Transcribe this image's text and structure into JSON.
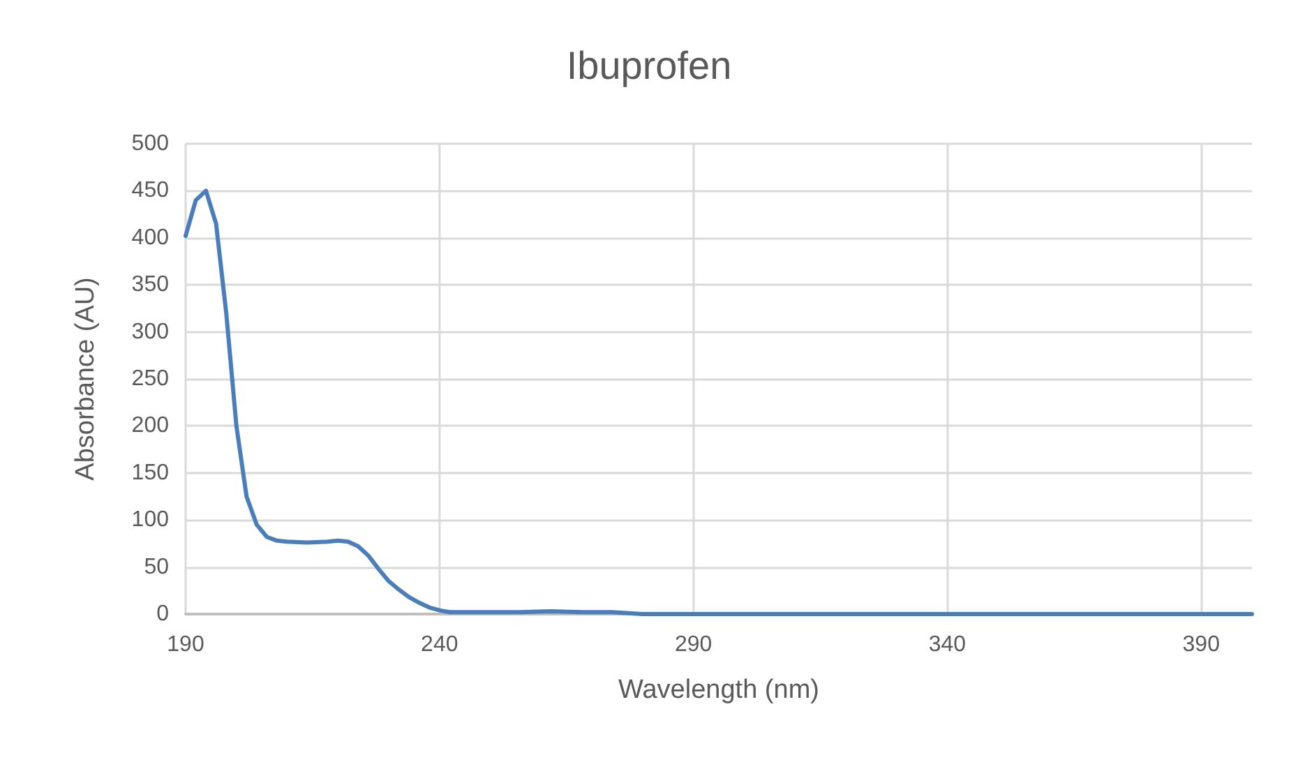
{
  "chart_data": {
    "type": "line",
    "title": "Ibuprofen",
    "xlabel": "Wavelength (nm)",
    "ylabel": "Absorbance (AU)",
    "x": [
      190,
      192,
      194,
      196,
      198,
      200,
      202,
      204,
      206,
      208,
      210,
      214,
      218,
      220,
      222,
      224,
      226,
      228,
      230,
      232,
      234,
      236,
      238,
      240,
      242,
      246,
      250,
      256,
      262,
      268,
      274,
      280,
      290,
      300,
      320,
      340,
      360,
      380,
      400
    ],
    "series": [
      {
        "color": "#4a7ebb",
        "values": [
          402,
          440,
          450,
          415,
          320,
          200,
          125,
          95,
          82,
          78,
          77,
          76,
          77,
          78,
          77,
          72,
          62,
          48,
          35,
          26,
          18,
          12,
          7,
          4,
          2,
          2,
          2,
          2,
          3,
          2,
          2,
          0,
          0,
          0,
          0,
          0,
          0,
          0,
          0
        ]
      }
    ],
    "xlim": [
      190,
      400
    ],
    "xticks": [
      190,
      240,
      290,
      340,
      390
    ],
    "ylim": [
      0,
      500
    ],
    "yticks": [
      0,
      50,
      100,
      150,
      200,
      250,
      300,
      350,
      400,
      450,
      500
    ],
    "grid": true,
    "marker": "none",
    "line_style": "solid"
  }
}
